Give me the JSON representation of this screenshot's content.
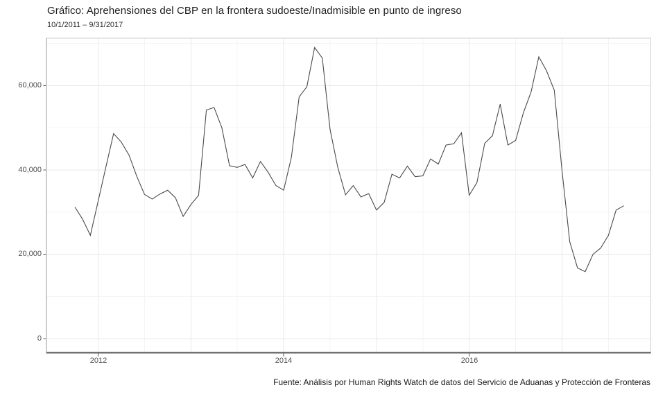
{
  "header": {
    "title": "Gráfico: Aprehensiones del CBP en la frontera sudoeste/Inadmisible en punto de ingreso",
    "subtitle": "10/1/2011 – 9/31/2017"
  },
  "footer": {
    "caption": "Fuente: Análisis por Human Rights Watch de datos del Servicio de Aduanas y Protección de Fronteras"
  },
  "chart_data": {
    "type": "line",
    "title": "Gráfico: Aprehensiones del CBP en la frontera sudoeste/Inadmisible en punto de ingreso",
    "subtitle": "10/1/2011 – 9/31/2017",
    "caption": "Fuente: Análisis por Human Rights Watch de datos del Servicio de Aduanas y Protección de Fronteras",
    "xlabel": "",
    "ylabel": "",
    "grid": true,
    "legend": "none",
    "ylim": [
      0,
      70000
    ],
    "x": [
      "2011-10",
      "2011-11",
      "2011-12",
      "2012-01",
      "2012-02",
      "2012-03",
      "2012-04",
      "2012-05",
      "2012-06",
      "2012-07",
      "2012-08",
      "2012-09",
      "2012-10",
      "2012-11",
      "2012-12",
      "2013-01",
      "2013-02",
      "2013-03",
      "2013-04",
      "2013-05",
      "2013-06",
      "2013-07",
      "2013-08",
      "2013-09",
      "2013-10",
      "2013-11",
      "2013-12",
      "2014-01",
      "2014-02",
      "2014-03",
      "2014-04",
      "2014-05",
      "2014-06",
      "2014-07",
      "2014-08",
      "2014-09",
      "2014-10",
      "2014-11",
      "2014-12",
      "2015-01",
      "2015-02",
      "2015-03",
      "2015-04",
      "2015-05",
      "2015-06",
      "2015-07",
      "2015-08",
      "2015-09",
      "2015-10",
      "2015-11",
      "2015-12",
      "2016-01",
      "2016-02",
      "2016-03",
      "2016-04",
      "2016-05",
      "2016-06",
      "2016-07",
      "2016-08",
      "2016-09",
      "2016-10",
      "2016-11",
      "2016-12",
      "2017-01",
      "2017-02",
      "2017-03",
      "2017-04",
      "2017-05",
      "2017-06",
      "2017-07",
      "2017-08",
      "2017-09"
    ],
    "values": [
      31200,
      28300,
      24500,
      32500,
      40600,
      48600,
      46600,
      43500,
      38500,
      34200,
      33100,
      34300,
      35200,
      33400,
      29000,
      31800,
      34000,
      54200,
      54800,
      50000,
      41000,
      40600,
      41300,
      38100,
      42000,
      39400,
      36300,
      35200,
      43000,
      57300,
      59700,
      69000,
      66500,
      49700,
      40600,
      34100,
      36300,
      33600,
      34400,
      30500,
      32300,
      39000,
      38100,
      40900,
      38400,
      38600,
      42600,
      41400,
      45900,
      46200,
      48800,
      34000,
      37000,
      46300,
      48100,
      55600,
      45900,
      47000,
      53500,
      58500,
      66800,
      63500,
      58900,
      39800,
      23000,
      16800,
      15900,
      20000,
      21500,
      24500,
      30500,
      31500
    ],
    "y_tick_labels": [
      "0",
      "20,000",
      "40,000",
      "60,000"
    ],
    "y_tick_values": [
      0,
      20000,
      40000,
      60000
    ],
    "y_minor_values": [
      10000,
      30000,
      50000,
      70000
    ],
    "x_tick_labels": [
      "2012",
      "2014",
      "2016"
    ],
    "x_tick_month_index": [
      3,
      27,
      51
    ],
    "x_gridline_month_index": [
      3,
      15,
      27,
      39,
      51,
      63
    ],
    "x_minor_gridline_month_index": [
      9,
      21,
      33,
      45,
      57,
      69
    ],
    "colors": {
      "line": "#4a4a4a",
      "grid_major": "#e8e8e8",
      "grid_minor": "#f4f4f4",
      "panel_border": "#d0d0d0",
      "axis_line": "#555555",
      "tick_mark": "#555555",
      "axis_text": "#4d4d4d"
    }
  }
}
